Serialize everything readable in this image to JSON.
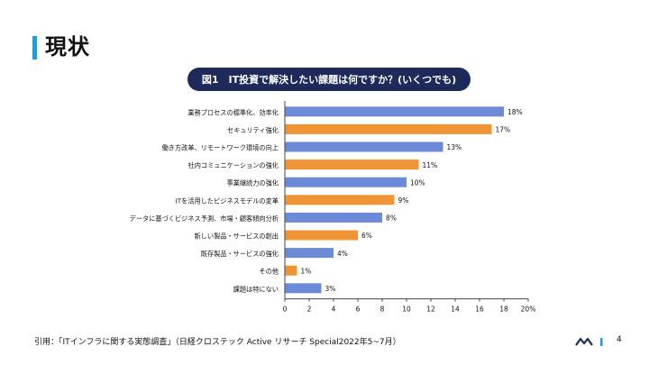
{
  "header": {
    "title": "現状"
  },
  "chart_data": {
    "type": "bar",
    "orientation": "horizontal",
    "title": "図1　IT投資で解決したい課題は何ですか？(いくつでも)",
    "categories": [
      "業務プロセスの標準化、効率化",
      "セキュリティ強化",
      "働き方改革、リモートワーク環境の向上",
      "社内コミュニケーションの強化",
      "事業継続力の強化",
      "ITを活用したビジネスモデルの変革",
      "データに基づくビジネス予測、市場・顧客傾向分析",
      "新しい製品・サービスの創出",
      "既存製品・サービスの強化",
      "その他",
      "課題は特にない"
    ],
    "values": [
      18,
      17,
      13,
      11,
      10,
      9,
      8,
      6,
      4,
      1,
      3
    ],
    "value_labels": [
      "18%",
      "17%",
      "13%",
      "11%",
      "10%",
      "9%",
      "8%",
      "6%",
      "4%",
      "1%",
      "3%"
    ],
    "bar_colors": [
      "#6c8ad8",
      "#ef9535",
      "#6c8ad8",
      "#ef9535",
      "#6c8ad8",
      "#ef9535",
      "#6c8ad8",
      "#ef9535",
      "#6c8ad8",
      "#ef9535",
      "#6c8ad8"
    ],
    "xlim": [
      0,
      20
    ],
    "x_ticks": [
      0,
      2,
      4,
      6,
      8,
      10,
      12,
      14,
      16,
      18,
      20
    ],
    "x_tick_labels": [
      "0",
      "2",
      "4",
      "6",
      "8",
      "10",
      "12",
      "14",
      "16",
      "18",
      "20%"
    ],
    "xlabel": "",
    "ylabel": "",
    "grid": false
  },
  "footer": {
    "citation": "引用：「ITインフラに関する実態調査」（日経クロステック Active リサーチ Special2022年5~7月）",
    "page_number": "4"
  },
  "colors": {
    "accent": "#1a9ee0",
    "pill": "#1d2a5a",
    "bar_blue": "#6c8ad8",
    "bar_orange": "#ef9535"
  }
}
